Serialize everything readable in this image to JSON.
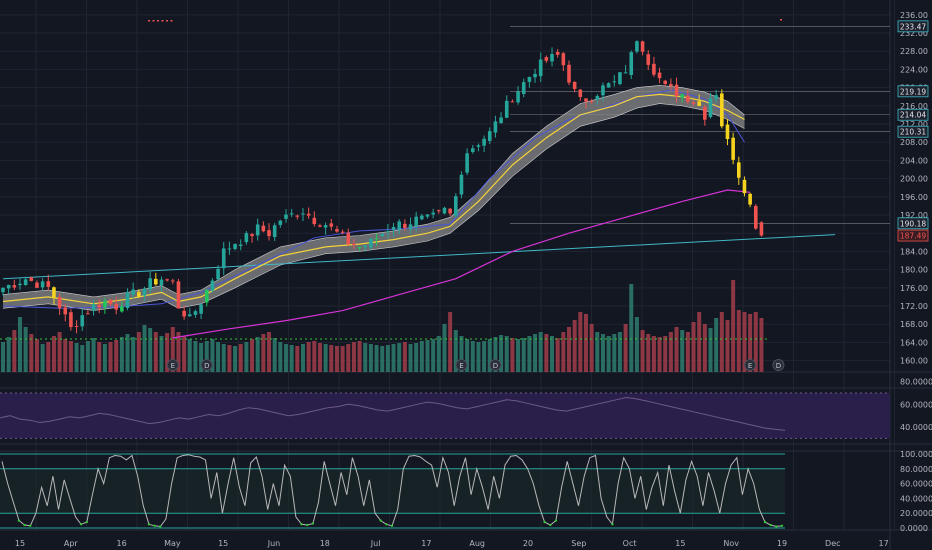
{
  "colors": {
    "background": "#131722",
    "grid": "#1f2430",
    "up": "#26a69a",
    "down": "#ef5350",
    "upVolume": "#2e7d6f",
    "downVolume": "#a43d4a",
    "ema": "#f5d33a",
    "ribbon": "#8a8a8a",
    "sma50": "#4a55d8",
    "sma200": "#d633d6",
    "trendline": "#3fb8c8",
    "rsiBand": "#2a1e4a",
    "rsiLine": "#6b5a88",
    "stoch": "#b8b8b8",
    "stochOversold": "#32c832",
    "stochBand": "#26a69a",
    "paintYellow": "#f5d31e",
    "paintGreen": "#22c55e",
    "text": "#b2b5be",
    "labelBg": "#1e222d"
  },
  "chart_data": {
    "type": "candlestick",
    "title": "",
    "grid": true,
    "price_axis": {
      "ticks": [
        "160.00",
        "164.00",
        "168.00",
        "172.00",
        "176.00",
        "180.00",
        "184.00",
        "188.00",
        "192.00",
        "196.00",
        "200.00",
        "204.00",
        "208.00",
        "212.00",
        "216.00",
        "220.00",
        "224.00",
        "228.00",
        "232.00",
        "236.00"
      ],
      "ylim": [
        157.5,
        237.5
      ]
    },
    "price_labels": [
      {
        "value": 233.47,
        "text": "233.47",
        "color": "#3fb8c8"
      },
      {
        "value": 219.19,
        "text": "219.19",
        "color": "#3fb8c8"
      },
      {
        "value": 214.04,
        "text": "214.04",
        "color": "#3fb8c8"
      },
      {
        "value": 210.31,
        "text": "210.31",
        "color": "#3fb8c8"
      },
      {
        "value": 190.18,
        "text": "190.18",
        "color": "#3fb8c8"
      },
      {
        "value": 187.49,
        "text": "187.49",
        "color": "#ef5350"
      }
    ],
    "horizontal_levels": [
      233.47,
      219.19,
      214.04,
      210.31,
      190.18
    ],
    "time_axis": [
      "15",
      "Apr",
      "16",
      "May",
      "15",
      "Jun",
      "18",
      "Jul",
      "17",
      "Aug",
      "20",
      "Sep",
      "Oct",
      "15",
      "Nov",
      "19",
      "Dec",
      "17"
    ],
    "close_path": [
      [
        0,
        176
      ],
      [
        4,
        178
      ],
      [
        8,
        176
      ],
      [
        10,
        172
      ],
      [
        12,
        167
      ],
      [
        14,
        170
      ],
      [
        16,
        172
      ],
      [
        18,
        173
      ],
      [
        20,
        172
      ],
      [
        22,
        174
      ],
      [
        24,
        175
      ],
      [
        26,
        177
      ],
      [
        28,
        178
      ],
      [
        30,
        177
      ],
      [
        31,
        172
      ],
      [
        33,
        169
      ],
      [
        35,
        173
      ],
      [
        37,
        178
      ],
      [
        39,
        184
      ],
      [
        41,
        186
      ],
      [
        43,
        187
      ],
      [
        45,
        189
      ],
      [
        47,
        188
      ],
      [
        49,
        191
      ],
      [
        51,
        192
      ],
      [
        53,
        193
      ],
      [
        55,
        191
      ],
      [
        57,
        190
      ],
      [
        59,
        188
      ],
      [
        61,
        186
      ],
      [
        63,
        185
      ],
      [
        65,
        186
      ],
      [
        67,
        188
      ],
      [
        69,
        190
      ],
      [
        71,
        190
      ],
      [
        73,
        191
      ],
      [
        75,
        191
      ],
      [
        77,
        192
      ],
      [
        78,
        193
      ],
      [
        79,
        192
      ],
      [
        80,
        196
      ],
      [
        81,
        202
      ],
      [
        82,
        206
      ],
      [
        84,
        208
      ],
      [
        86,
        210
      ],
      [
        88,
        214
      ],
      [
        90,
        218
      ],
      [
        92,
        221
      ],
      [
        94,
        224
      ],
      [
        96,
        226
      ],
      [
        98,
        227
      ],
      [
        99,
        225
      ],
      [
        100,
        222
      ],
      [
        101,
        219
      ],
      [
        102,
        217
      ],
      [
        104,
        218
      ],
      [
        106,
        220
      ],
      [
        108,
        221
      ],
      [
        110,
        224
      ],
      [
        111,
        227
      ],
      [
        112,
        231
      ],
      [
        113,
        229
      ],
      [
        114,
        226
      ],
      [
        115,
        224
      ],
      [
        117,
        220
      ],
      [
        119,
        219
      ],
      [
        121,
        218
      ],
      [
        123,
        216
      ],
      [
        124,
        214
      ],
      [
        125,
        218
      ],
      [
        126,
        219
      ],
      [
        127,
        212
      ],
      [
        128,
        208
      ],
      [
        129,
        205
      ],
      [
        130,
        201
      ],
      [
        131,
        198
      ],
      [
        132,
        194
      ],
      [
        133,
        190
      ],
      [
        134,
        187.5
      ]
    ],
    "ema_fast": [
      [
        0,
        173
      ],
      [
        8,
        174
      ],
      [
        16,
        172.5
      ],
      [
        22,
        173.5
      ],
      [
        28,
        175
      ],
      [
        31,
        173
      ],
      [
        35,
        174
      ],
      [
        41,
        178
      ],
      [
        49,
        183
      ],
      [
        57,
        185
      ],
      [
        63,
        185.6
      ],
      [
        69,
        186.6
      ],
      [
        75,
        188
      ],
      [
        79,
        189.5
      ],
      [
        84,
        195
      ],
      [
        90,
        203
      ],
      [
        96,
        209
      ],
      [
        102,
        214
      ],
      [
        108,
        216
      ],
      [
        112,
        218
      ],
      [
        116,
        218.5
      ],
      [
        120,
        218
      ],
      [
        124,
        217
      ],
      [
        128,
        215
      ],
      [
        131,
        213
      ]
    ],
    "ribbon_upper": [
      [
        0,
        174.5
      ],
      [
        8,
        175.5
      ],
      [
        16,
        174
      ],
      [
        22,
        175
      ],
      [
        28,
        176.5
      ],
      [
        31,
        174.5
      ],
      [
        35,
        175.5
      ],
      [
        41,
        180
      ],
      [
        49,
        185
      ],
      [
        57,
        187
      ],
      [
        63,
        187.5
      ],
      [
        69,
        188.5
      ],
      [
        75,
        190
      ],
      [
        79,
        191.5
      ],
      [
        84,
        197
      ],
      [
        90,
        205.5
      ],
      [
        96,
        211.5
      ],
      [
        102,
        216.5
      ],
      [
        108,
        218.5
      ],
      [
        112,
        220
      ],
      [
        116,
        220.5
      ],
      [
        120,
        220
      ],
      [
        124,
        219
      ],
      [
        128,
        217
      ],
      [
        131,
        214
      ]
    ],
    "ribbon_lower": [
      [
        0,
        171.5
      ],
      [
        8,
        172.5
      ],
      [
        16,
        171
      ],
      [
        22,
        172
      ],
      [
        28,
        173.5
      ],
      [
        31,
        171.5
      ],
      [
        35,
        172.5
      ],
      [
        41,
        176
      ],
      [
        49,
        181
      ],
      [
        57,
        183.5
      ],
      [
        63,
        184
      ],
      [
        69,
        185
      ],
      [
        75,
        186.3
      ],
      [
        79,
        188
      ],
      [
        84,
        193
      ],
      [
        90,
        200.5
      ],
      [
        96,
        206.5
      ],
      [
        102,
        211.5
      ],
      [
        108,
        213.5
      ],
      [
        112,
        215.5
      ],
      [
        116,
        216.5
      ],
      [
        120,
        216
      ],
      [
        124,
        215
      ],
      [
        128,
        213
      ],
      [
        131,
        211
      ]
    ],
    "sma50": [
      [
        0,
        172
      ],
      [
        10,
        171.5
      ],
      [
        20,
        171.8
      ],
      [
        28,
        172.5
      ],
      [
        35,
        175
      ],
      [
        45,
        181
      ],
      [
        55,
        187
      ],
      [
        63,
        188.5
      ],
      [
        71,
        189
      ],
      [
        79,
        190
      ],
      [
        86,
        200
      ],
      [
        94,
        209
      ],
      [
        100,
        213
      ],
      [
        106,
        215.5
      ],
      [
        112,
        218
      ],
      [
        118,
        219.5
      ],
      [
        124,
        217.5
      ],
      [
        128,
        214
      ],
      [
        131,
        208
      ]
    ],
    "sma200": [
      [
        30,
        165
      ],
      [
        40,
        167
      ],
      [
        50,
        168.8
      ],
      [
        60,
        171
      ],
      [
        70,
        174.5
      ],
      [
        80,
        178
      ],
      [
        90,
        184
      ],
      [
        100,
        188
      ],
      [
        110,
        191.5
      ],
      [
        120,
        195
      ],
      [
        128,
        197.5
      ],
      [
        132,
        197
      ]
    ],
    "trendline": [
      [
        0,
        178
      ],
      [
        147,
        187.7
      ]
    ],
    "volume": [
      0.3,
      0.35,
      0.42,
      0.55,
      0.45,
      0.38,
      0.33,
      0.28,
      0.3,
      0.36,
      0.4,
      0.33,
      0.31,
      0.29,
      0.27,
      0.31,
      0.34,
      0.3,
      0.28,
      0.3,
      0.32,
      0.35,
      0.38,
      0.35,
      0.4,
      0.47,
      0.44,
      0.4,
      0.36,
      0.39,
      0.45,
      0.4,
      0.36,
      0.33,
      0.31,
      0.29,
      0.31,
      0.33,
      0.3,
      0.28,
      0.27,
      0.26,
      0.28,
      0.3,
      0.33,
      0.35,
      0.38,
      0.4,
      0.34,
      0.3,
      0.28,
      0.27,
      0.26,
      0.28,
      0.3,
      0.31,
      0.29,
      0.28,
      0.27,
      0.26,
      0.26,
      0.28,
      0.3,
      0.31,
      0.29,
      0.28,
      0.27,
      0.26,
      0.27,
      0.28,
      0.29,
      0.3,
      0.28,
      0.29,
      0.31,
      0.32,
      0.33,
      0.36,
      0.48,
      0.6,
      0.42,
      0.36,
      0.33,
      0.31,
      0.3,
      0.31,
      0.33,
      0.35,
      0.37,
      0.36,
      0.34,
      0.33,
      0.34,
      0.36,
      0.38,
      0.4,
      0.38,
      0.36,
      0.34,
      0.4,
      0.45,
      0.52,
      0.6,
      0.58,
      0.48,
      0.4,
      0.38,
      0.36,
      0.38,
      0.4,
      0.48,
      0.88,
      0.55,
      0.42,
      0.38,
      0.36,
      0.35,
      0.36,
      0.4,
      0.45,
      0.42,
      0.4,
      0.5,
      0.6,
      0.48,
      0.44,
      0.54,
      0.6,
      0.52,
      0.92,
      0.62,
      0.6,
      0.58,
      0.6,
      0.54
    ],
    "volume_avg": 0.33,
    "events": [
      {
        "i": 30,
        "label": "E"
      },
      {
        "i": 36,
        "label": "D"
      },
      {
        "i": 81,
        "label": "E"
      },
      {
        "i": 87,
        "label": "D"
      },
      {
        "i": 132,
        "label": "E"
      },
      {
        "i": 137,
        "label": "D"
      }
    ],
    "rsi": {
      "axis_labels": [
        "80.0000",
        "60.0000",
        "40.0000"
      ],
      "band": [
        70,
        30
      ],
      "values": [
        48,
        50,
        47,
        46,
        44,
        45,
        47,
        49,
        48,
        50,
        52,
        51,
        49,
        47,
        45,
        43,
        44,
        46,
        48,
        47,
        49,
        51,
        50,
        52,
        55,
        57,
        56,
        54,
        52,
        50,
        51,
        53,
        55,
        57,
        58,
        60,
        59,
        57,
        55,
        54,
        56,
        58,
        60,
        62,
        61,
        59,
        57,
        56,
        58,
        60,
        62,
        64,
        63,
        61,
        59,
        57,
        55,
        54,
        56,
        58,
        60,
        62,
        64,
        66,
        65,
        63,
        61,
        59,
        57,
        55,
        53,
        51,
        49,
        47,
        45,
        43,
        41,
        39,
        38,
        37
      ]
    },
    "stoch": {
      "axis_labels": [
        "100.0000",
        "80.0000",
        "60.0000",
        "40.0000",
        "20.0000",
        "0.0000"
      ],
      "band": [
        80,
        20
      ],
      "values": [
        90,
        60,
        35,
        10,
        4,
        3,
        20,
        55,
        30,
        70,
        25,
        65,
        40,
        15,
        5,
        8,
        45,
        80,
        60,
        95,
        98,
        97,
        92,
        98,
        70,
        30,
        5,
        3,
        2,
        12,
        60,
        95,
        98,
        99,
        97,
        96,
        92,
        40,
        75,
        20,
        60,
        95,
        55,
        30,
        88,
        96,
        70,
        25,
        60,
        30,
        85,
        70,
        15,
        5,
        4,
        6,
        35,
        90,
        60,
        30,
        75,
        45,
        95,
        70,
        30,
        65,
        20,
        10,
        5,
        3,
        25,
        80,
        97,
        98,
        96,
        90,
        85,
        55,
        95,
        75,
        30,
        70,
        95,
        45,
        80,
        55,
        25,
        70,
        40,
        85,
        97,
        98,
        92,
        80,
        60,
        30,
        8,
        4,
        10,
        55,
        90,
        60,
        30,
        70,
        95,
        98,
        40,
        15,
        5,
        60,
        95,
        80,
        40,
        70,
        25,
        55,
        75,
        30,
        85,
        50,
        20,
        65,
        90,
        70,
        30,
        75,
        50,
        20,
        60,
        85,
        95,
        45,
        80,
        60,
        25,
        8,
        4,
        2,
        3
      ]
    }
  }
}
